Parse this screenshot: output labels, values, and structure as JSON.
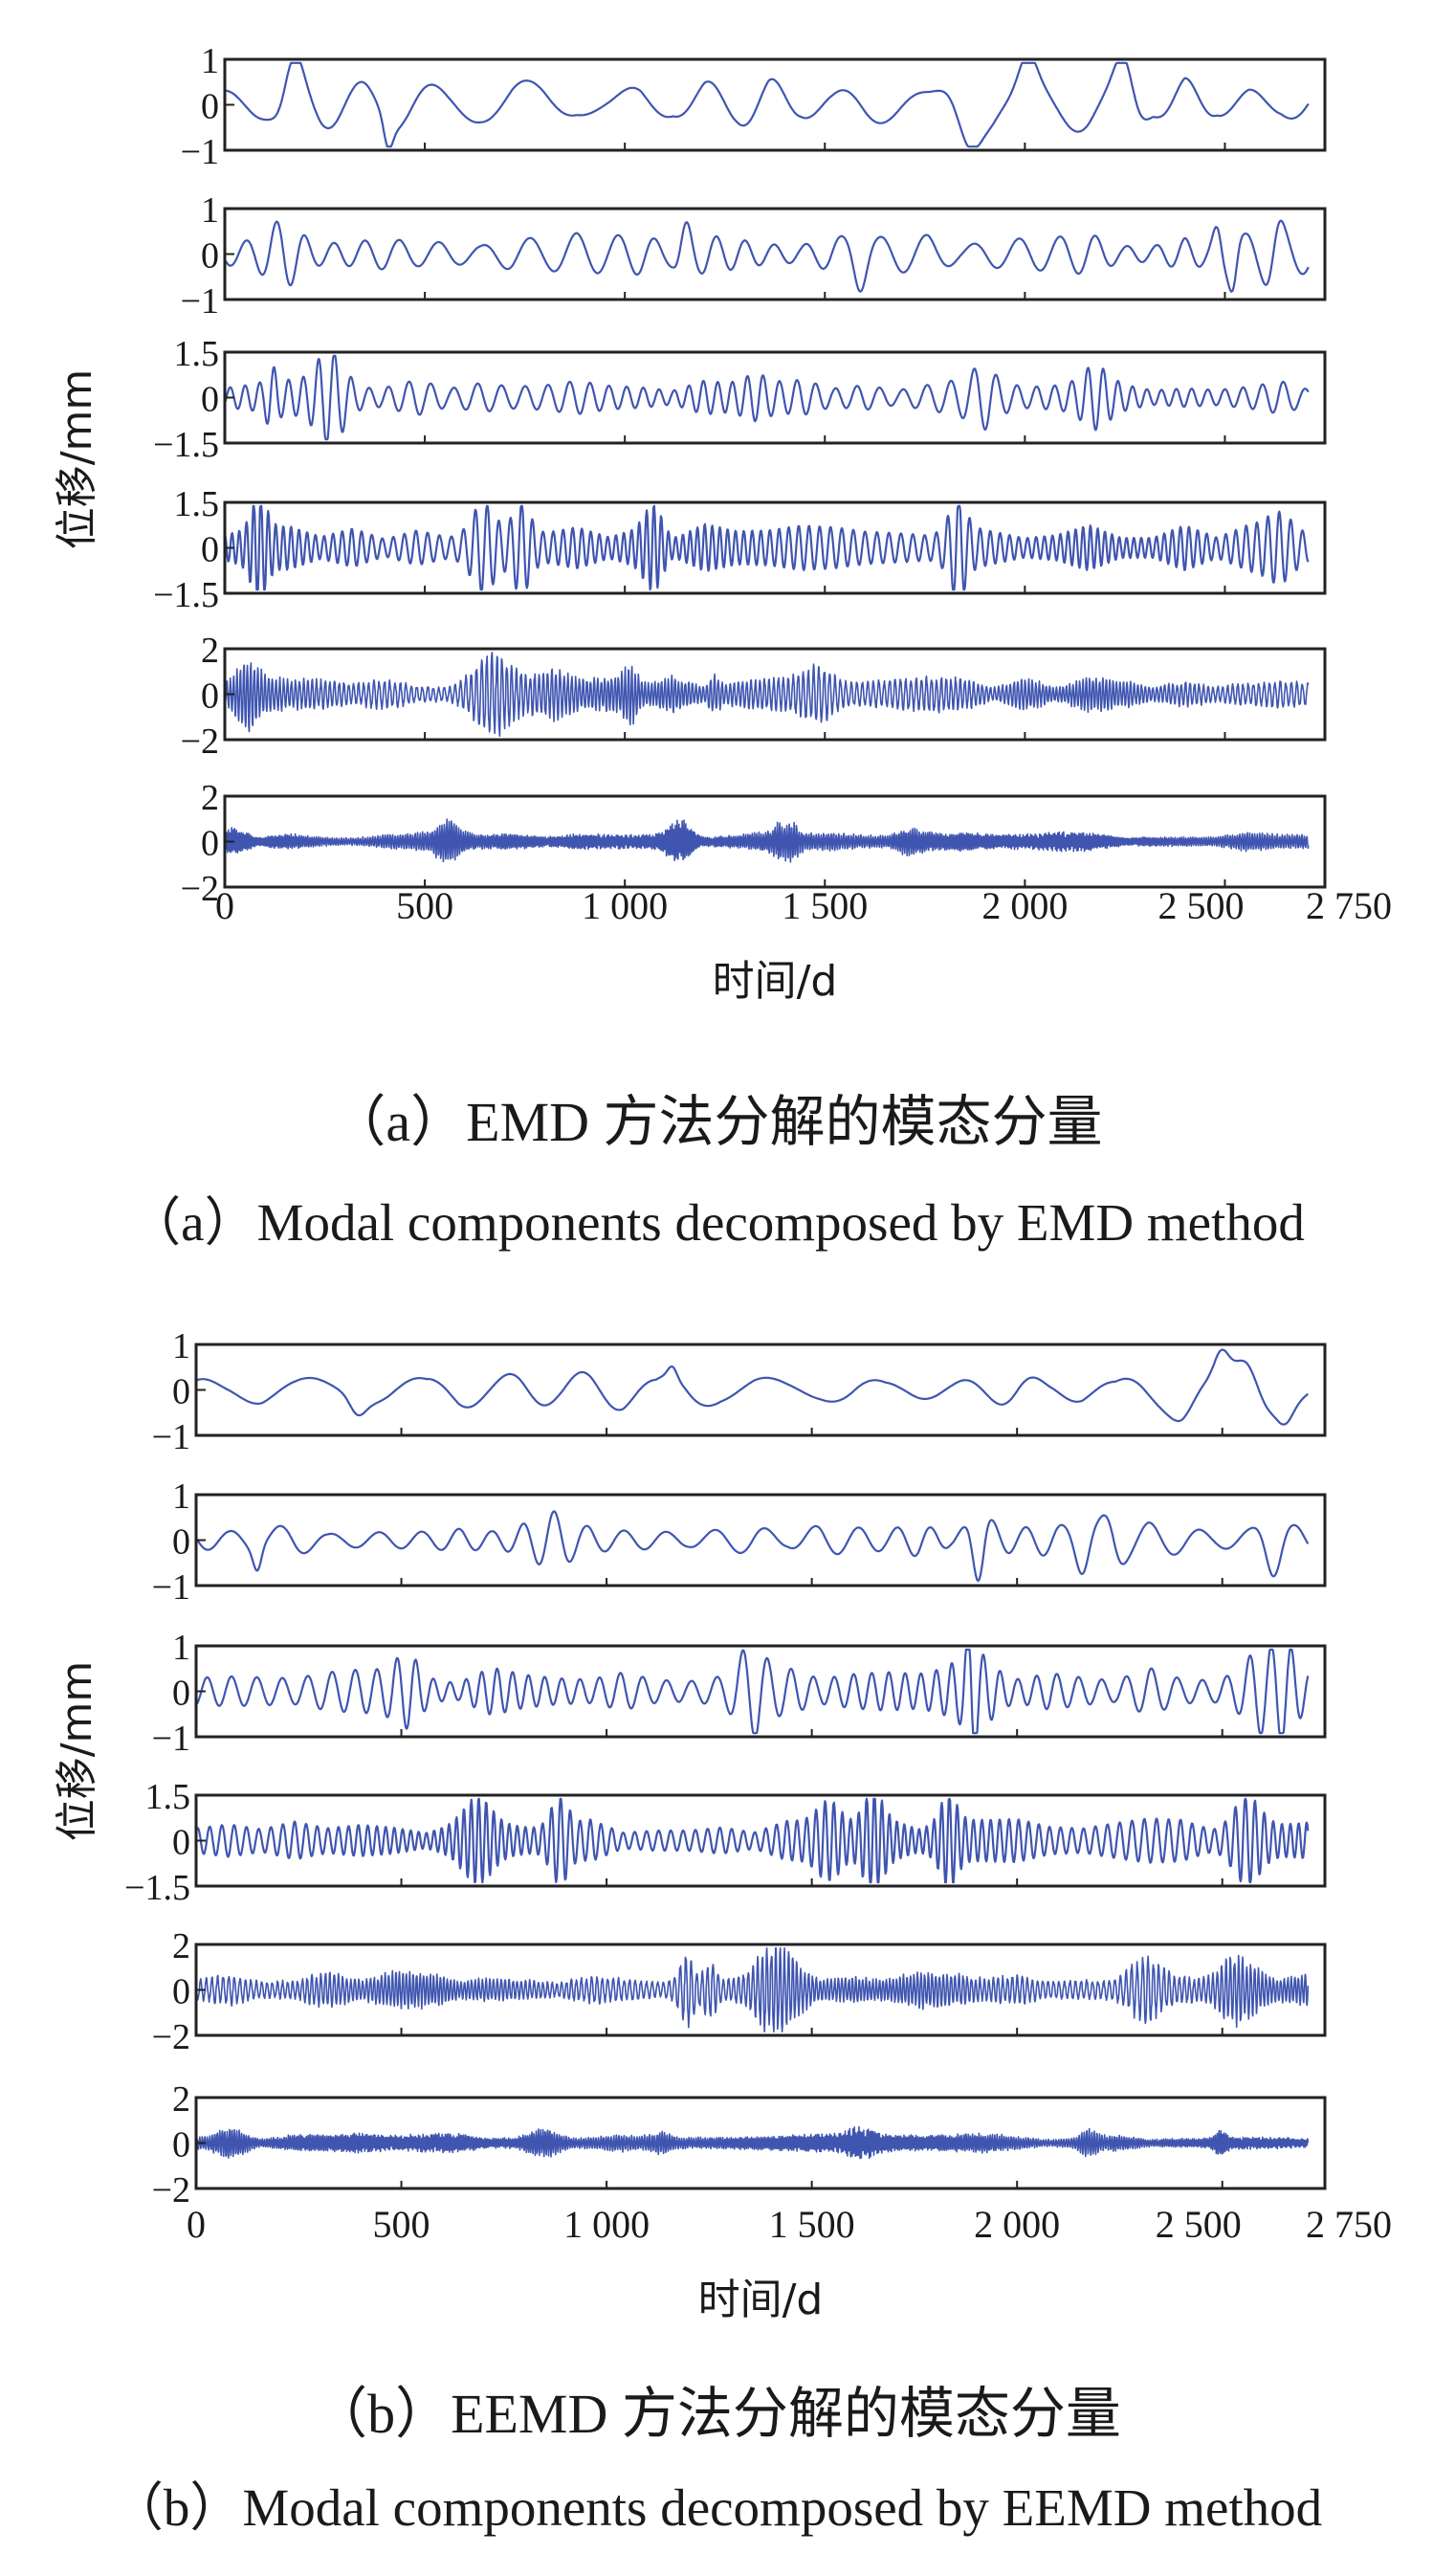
{
  "figure": {
    "a": {
      "caption_zh": "（a）EMD 方法分解的模态分量",
      "caption_en": "（a）Modal components decomposed by EMD method"
    },
    "b": {
      "caption_zh": "（b）EEMD 方法分解的模态分量",
      "caption_en": "（b）Modal components decomposed by EEMD method"
    },
    "colors": {
      "line": "#3f55b0",
      "frame": "#222222",
      "text": "#1a1a1a"
    }
  },
  "chart_data": [
    {
      "type": "line",
      "panel": "a",
      "xlabel": "时间/d",
      "ylabel": "位移/mm",
      "xlim": [
        0,
        2750
      ],
      "x_ticks": [
        0,
        500,
        1000,
        1500,
        2000,
        2500,
        2750
      ],
      "x_tick_labels": [
        "0",
        "500",
        "1 000",
        "1 500",
        "2 000",
        "2 500",
        "2 750"
      ],
      "subplots": [
        {
          "ylim": [
            -1,
            1
          ],
          "y_ticks": [
            1,
            0,
            -1
          ],
          "y_tick_labels": [
            "1",
            "0",
            "−1"
          ],
          "amplitude": 0.45,
          "period_days": 210
        },
        {
          "ylim": [
            -1,
            1
          ],
          "y_ticks": [
            1,
            0,
            -1
          ],
          "y_tick_labels": [
            "1",
            "0",
            "−1"
          ],
          "amplitude": 0.35,
          "period_days": 95
        },
        {
          "ylim": [
            -1.5,
            1.5
          ],
          "y_ticks": [
            1.5,
            0,
            -1.5
          ],
          "y_tick_labels": [
            "1.5",
            "0",
            "−1.5"
          ],
          "amplitude": 0.45,
          "period_days": 48
        },
        {
          "ylim": [
            -1.5,
            1.5
          ],
          "y_ticks": [
            1.5,
            0,
            -1.5
          ],
          "y_tick_labels": [
            "1.5",
            "0",
            "−1.5"
          ],
          "amplitude": 0.6,
          "period_days": 24
        },
        {
          "ylim": [
            -2,
            2
          ],
          "y_ticks": [
            2,
            0,
            -2
          ],
          "y_tick_labels": [
            "2",
            "0",
            "−2"
          ],
          "amplitude": 0.55,
          "period_days": 11
        },
        {
          "ylim": [
            -2,
            2
          ],
          "y_ticks": [
            2,
            0,
            -2
          ],
          "y_tick_labels": [
            "2",
            "0",
            "−2"
          ],
          "amplitude": 0.3,
          "period_days": 5
        }
      ]
    },
    {
      "type": "line",
      "panel": "b",
      "xlabel": "时间/d",
      "ylabel": "位移/mm",
      "xlim": [
        0,
        2750
      ],
      "x_ticks": [
        0,
        500,
        1000,
        1500,
        2000,
        2500,
        2750
      ],
      "x_tick_labels": [
        "0",
        "500",
        "1 000",
        "1 500",
        "2 000",
        "2 500",
        "2 750"
      ],
      "subplots": [
        {
          "ylim": [
            -1,
            1
          ],
          "y_ticks": [
            1,
            0,
            -1
          ],
          "y_tick_labels": [
            "1",
            "0",
            "−1"
          ],
          "amplitude": 0.35,
          "period_days": 230
        },
        {
          "ylim": [
            -1,
            1
          ],
          "y_ticks": [
            1,
            0,
            -1
          ],
          "y_tick_labels": [
            "1",
            "0",
            "−1"
          ],
          "amplitude": 0.3,
          "period_days": 100
        },
        {
          "ylim": [
            -1,
            1
          ],
          "y_ticks": [
            1,
            0,
            -1
          ],
          "y_tick_labels": [
            "1",
            "0",
            "−1"
          ],
          "amplitude": 0.4,
          "period_days": 50
        },
        {
          "ylim": [
            -1.5,
            1.5
          ],
          "y_ticks": [
            1.5,
            0,
            -1.5
          ],
          "y_tick_labels": [
            "1.5",
            "0",
            "−1.5"
          ],
          "amplitude": 0.55,
          "period_days": 24
        },
        {
          "ylim": [
            -2,
            2
          ],
          "y_ticks": [
            2,
            0,
            -2
          ],
          "y_tick_labels": [
            "2",
            "0",
            "−2"
          ],
          "amplitude": 0.55,
          "period_days": 11
        },
        {
          "ylim": [
            -2,
            2
          ],
          "y_ticks": [
            2,
            0,
            -2
          ],
          "y_tick_labels": [
            "2",
            "0",
            "−2"
          ],
          "amplitude": 0.3,
          "period_days": 5
        }
      ]
    }
  ]
}
